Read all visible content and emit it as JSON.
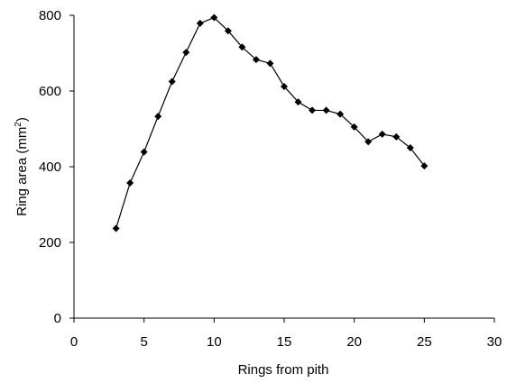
{
  "chart_data": {
    "type": "line",
    "title": "",
    "xlabel": "Rings from pith",
    "ylabel_main": "Ring area (mm",
    "ylabel_sup": "2",
    "ylabel_end": ")",
    "xlim": [
      0,
      30
    ],
    "ylim": [
      0,
      800
    ],
    "xticks": [
      0,
      5,
      10,
      15,
      20,
      25,
      30
    ],
    "yticks": [
      0,
      200,
      400,
      600,
      800
    ],
    "grid": false,
    "legend": "none",
    "series": [
      {
        "marker": "diamond",
        "color": "#000000",
        "points": [
          {
            "x": 3,
            "y": 237
          },
          {
            "x": 4,
            "y": 357
          },
          {
            "x": 5,
            "y": 439
          },
          {
            "x": 6,
            "y": 533
          },
          {
            "x": 7,
            "y": 625
          },
          {
            "x": 8,
            "y": 702
          },
          {
            "x": 9,
            "y": 779
          },
          {
            "x": 10,
            "y": 794
          },
          {
            "x": 11,
            "y": 759
          },
          {
            "x": 12,
            "y": 716
          },
          {
            "x": 13,
            "y": 683
          },
          {
            "x": 14,
            "y": 673
          },
          {
            "x": 15,
            "y": 612
          },
          {
            "x": 16,
            "y": 571
          },
          {
            "x": 17,
            "y": 549
          },
          {
            "x": 18,
            "y": 549
          },
          {
            "x": 19,
            "y": 539
          },
          {
            "x": 20,
            "y": 505
          },
          {
            "x": 21,
            "y": 466
          },
          {
            "x": 22,
            "y": 486
          },
          {
            "x": 23,
            "y": 479
          },
          {
            "x": 24,
            "y": 450
          },
          {
            "x": 25,
            "y": 402
          }
        ]
      }
    ]
  }
}
